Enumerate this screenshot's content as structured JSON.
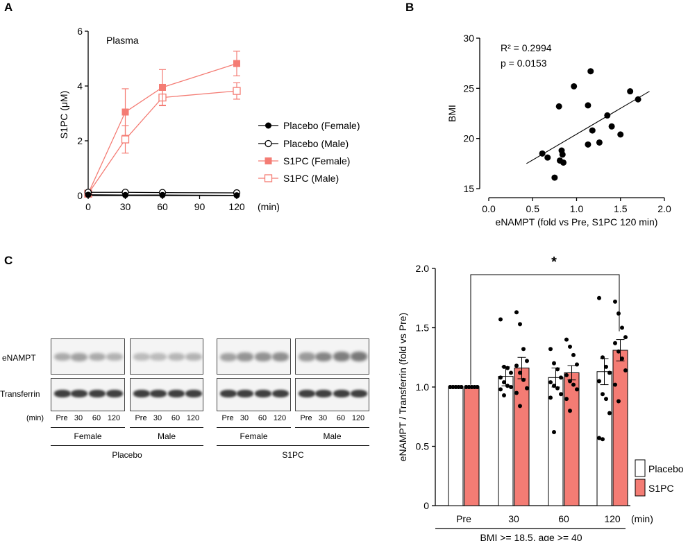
{
  "panels": {
    "a": "A",
    "b": "B",
    "c": "C"
  },
  "chart_data": [
    {
      "type": "line",
      "panel": "A",
      "annotation": "Plasma",
      "ylabel": "S1PC (μM)",
      "xunit": "(min)",
      "x": [
        0,
        30,
        60,
        120
      ],
      "xticks": [
        0,
        30,
        60,
        90,
        120
      ],
      "yticks": [
        0,
        2,
        4,
        6
      ],
      "xlim": [
        0,
        120
      ],
      "ylim": [
        0,
        6
      ],
      "series": [
        {
          "name": "Placebo (Female)",
          "marker": "filled-circle",
          "color": "#000000",
          "values": [
            0.03,
            0.02,
            0.02,
            0.01
          ],
          "err": [
            0,
            0,
            0,
            0
          ]
        },
        {
          "name": "Placebo (Male)",
          "marker": "open-circle",
          "color": "#000000",
          "values": [
            0.12,
            0.12,
            0.11,
            0.1
          ],
          "err": [
            0,
            0,
            0,
            0
          ]
        },
        {
          "name": "S1PC (Female)",
          "marker": "filled-square",
          "color": "#f47c74",
          "values": [
            0.07,
            3.05,
            3.95,
            4.82
          ],
          "err": [
            0,
            0.85,
            0.65,
            0.45
          ]
        },
        {
          "name": "S1PC (Male)",
          "marker": "open-square",
          "color": "#f47c74",
          "values": [
            0.07,
            2.05,
            3.58,
            3.82
          ],
          "err": [
            0,
            0.5,
            0.3,
            0.3
          ]
        }
      ],
      "legend_position": "right"
    },
    {
      "type": "scatter",
      "panel": "B",
      "xlabel": "eNAMPT (fold vs Pre, S1PC 120 min)",
      "ylabel": "BMI",
      "stats": {
        "r2_label": "R² = 0.2994",
        "p_label": "p = 0.0153"
      },
      "xlim": [
        0,
        2
      ],
      "ylim": [
        15,
        30
      ],
      "xticks": [
        "0.0",
        "0.5",
        "1.0",
        "1.5",
        "2.0"
      ],
      "yticks": [
        "15",
        "20",
        "25",
        "30"
      ],
      "points": [
        [
          0.61,
          18.5
        ],
        [
          0.67,
          18.1
        ],
        [
          0.75,
          16.1
        ],
        [
          0.8,
          23.2
        ],
        [
          0.81,
          17.8
        ],
        [
          0.83,
          18.8
        ],
        [
          0.84,
          18.4
        ],
        [
          0.85,
          17.6
        ],
        [
          0.97,
          25.2
        ],
        [
          1.13,
          19.4
        ],
        [
          1.13,
          23.3
        ],
        [
          1.16,
          26.7
        ],
        [
          1.18,
          20.8
        ],
        [
          1.26,
          19.6
        ],
        [
          1.35,
          22.3
        ],
        [
          1.4,
          21.2
        ],
        [
          1.5,
          20.4
        ],
        [
          1.61,
          24.7
        ],
        [
          1.7,
          23.9
        ]
      ],
      "fit_line": {
        "x": [
          0.43,
          1.83
        ],
        "y": [
          17.5,
          24.7
        ]
      }
    },
    {
      "type": "bar",
      "panel": "C",
      "ylabel": "eNAMPT / Transferrin (fold vs Pre)",
      "xlabel": "BMI >= 18.5, age >= 40",
      "xunit": "(min)",
      "categories": [
        "Pre",
        "30",
        "60",
        "120"
      ],
      "yticks": [
        "0",
        "0.5",
        "1.0",
        "1.5",
        "2.0"
      ],
      "ylim": [
        0,
        2
      ],
      "significance": {
        "label": "*",
        "from": "Pre",
        "to": "120"
      },
      "legend_position": "bottom-right",
      "series": [
        {
          "name": "Placebo",
          "color": "#ffffff",
          "values": [
            1.0,
            1.09,
            1.08,
            1.13
          ],
          "err": [
            0,
            0.08,
            0.08,
            0.11
          ],
          "points": [
            [
              1,
              1,
              1,
              1,
              1,
              1,
              1,
              1,
              1,
              1
            ],
            [
              1.57,
              1.17,
              1.16,
              1.12,
              1.08,
              1.04,
              1.01,
              1.0,
              0.98,
              0.93
            ],
            [
              1.32,
              1.2,
              1.15,
              1.08,
              1.04,
              1.01,
              0.99,
              0.94,
              0.91,
              0.62
            ],
            [
              1.75,
              1.25,
              1.17,
              1.12,
              1.05,
              0.94,
              0.9,
              0.78,
              0.57,
              0.56
            ]
          ]
        },
        {
          "name": "S1PC",
          "color": "#f47c74",
          "values": [
            1.0,
            1.16,
            1.12,
            1.31
          ],
          "err": [
            0,
            0.09,
            0.06,
            0.09
          ],
          "points": [
            [
              1,
              1,
              1,
              1,
              1,
              1,
              1,
              1,
              1,
              1
            ],
            [
              1.63,
              1.53,
              1.32,
              1.22,
              1.18,
              1.12,
              1.06,
              0.99,
              0.95,
              0.84
            ],
            [
              1.4,
              1.34,
              1.27,
              1.19,
              1.1,
              1.05,
              1.02,
              0.98,
              0.9,
              0.8
            ],
            [
              1.72,
              1.62,
              1.5,
              1.42,
              1.37,
              1.3,
              1.24,
              1.14,
              1.02,
              0.88
            ]
          ]
        }
      ]
    }
  ],
  "western_blot": {
    "row_labels": [
      "eNAMPT",
      "Transferrin"
    ],
    "time_label": "(min)",
    "lanes": [
      "Pre",
      "30",
      "60",
      "120"
    ],
    "sex_labels": [
      "Female",
      "Male",
      "Female",
      "Male"
    ],
    "treatment_labels": [
      "Placebo",
      "S1PC"
    ]
  }
}
